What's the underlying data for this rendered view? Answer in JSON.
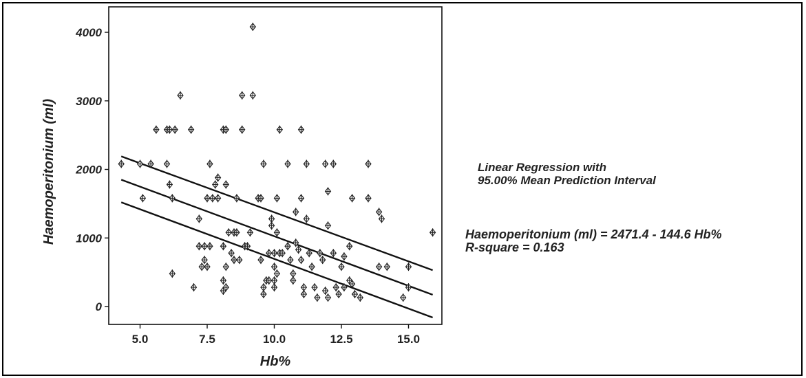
{
  "annotation": {
    "legend_line1": "Linear Regression with",
    "legend_line2": "95.00% Mean Prediction Interval",
    "equation": "Haemoperitonium (ml) = 2471.4 - 144.6 Hb%",
    "rsquare": "R-square = 0.163"
  },
  "chart_data": {
    "type": "scatter",
    "title": "",
    "xlabel": "Hb%",
    "ylabel": "Haemoperitonium (ml)",
    "xlim": [
      3.8,
      16.3
    ],
    "ylim": [
      -200,
      4150
    ],
    "xticks": [
      5.0,
      7.5,
      10.0,
      12.5,
      15.0
    ],
    "xtick_labels": [
      "5.0",
      "7.5",
      "10.0",
      "12.5",
      "15.0"
    ],
    "yticks": [
      0,
      1000,
      2000,
      3000,
      4000
    ],
    "ytick_labels": [
      "0",
      "1000",
      "2000",
      "3000",
      "4000"
    ],
    "grid": false,
    "marker": "diamond-cross",
    "regression": {
      "intercept": 2471.4,
      "slope": -144.6,
      "r_square": 0.163
    },
    "interval_lines": {
      "upper": [
        [
          4.3,
          2190
        ],
        [
          15.9,
          530
        ]
      ],
      "lower": [
        [
          4.3,
          1520
        ],
        [
          15.9,
          -160
        ]
      ]
    },
    "points": [
      [
        4.3,
        2080
      ],
      [
        5.0,
        2080
      ],
      [
        5.4,
        2080
      ],
      [
        5.1,
        1580
      ],
      [
        5.6,
        2580
      ],
      [
        6.0,
        2580
      ],
      [
        6.1,
        2580
      ],
      [
        6.3,
        2580
      ],
      [
        6.0,
        2080
      ],
      [
        6.1,
        1780
      ],
      [
        6.2,
        1580
      ],
      [
        6.5,
        3080
      ],
      [
        6.9,
        2580
      ],
      [
        6.2,
        480
      ],
      [
        7.0,
        280
      ],
      [
        7.2,
        880
      ],
      [
        7.4,
        880
      ],
      [
        7.6,
        880
      ],
      [
        7.2,
        1280
      ],
      [
        7.3,
        580
      ],
      [
        7.4,
        680
      ],
      [
        7.5,
        580
      ],
      [
        7.6,
        2080
      ],
      [
        7.5,
        1580
      ],
      [
        7.7,
        1580
      ],
      [
        7.8,
        1780
      ],
      [
        7.9,
        1880
      ],
      [
        7.9,
        1580
      ],
      [
        8.1,
        2580
      ],
      [
        8.2,
        2580
      ],
      [
        8.2,
        1780
      ],
      [
        8.1,
        880
      ],
      [
        8.2,
        580
      ],
      [
        8.1,
        380
      ],
      [
        8.1,
        230
      ],
      [
        8.2,
        280
      ],
      [
        8.3,
        1080
      ],
      [
        8.4,
        780
      ],
      [
        8.5,
        1080
      ],
      [
        8.5,
        680
      ],
      [
        8.6,
        1580
      ],
      [
        8.6,
        1080
      ],
      [
        8.7,
        680
      ],
      [
        8.8,
        2580
      ],
      [
        8.8,
        3080
      ],
      [
        8.9,
        880
      ],
      [
        9.0,
        880
      ],
      [
        9.1,
        1080
      ],
      [
        9.2,
        3080
      ],
      [
        9.2,
        4080
      ],
      [
        9.4,
        1580
      ],
      [
        9.5,
        1580
      ],
      [
        9.6,
        2080
      ],
      [
        9.5,
        680
      ],
      [
        9.7,
        380
      ],
      [
        9.6,
        280
      ],
      [
        9.6,
        180
      ],
      [
        9.8,
        780
      ],
      [
        9.8,
        380
      ],
      [
        9.9,
        1280
      ],
      [
        9.9,
        1180
      ],
      [
        10.0,
        780
      ],
      [
        10.0,
        580
      ],
      [
        10.1,
        480
      ],
      [
        10.0,
        380
      ],
      [
        10.0,
        280
      ],
      [
        10.1,
        1580
      ],
      [
        10.2,
        2580
      ],
      [
        10.2,
        780
      ],
      [
        10.1,
        1080
      ],
      [
        10.3,
        780
      ],
      [
        10.5,
        2080
      ],
      [
        10.5,
        880
      ],
      [
        10.6,
        680
      ],
      [
        10.7,
        480
      ],
      [
        10.7,
        380
      ],
      [
        10.8,
        1380
      ],
      [
        10.8,
        930
      ],
      [
        10.9,
        830
      ],
      [
        11.0,
        2580
      ],
      [
        11.0,
        1580
      ],
      [
        11.0,
        680
      ],
      [
        11.1,
        280
      ],
      [
        11.1,
        180
      ],
      [
        11.2,
        2080
      ],
      [
        11.2,
        1280
      ],
      [
        11.3,
        780
      ],
      [
        11.4,
        580
      ],
      [
        11.5,
        280
      ],
      [
        11.6,
        130
      ],
      [
        11.7,
        780
      ],
      [
        11.8,
        680
      ],
      [
        11.9,
        2080
      ],
      [
        11.9,
        230
      ],
      [
        12.0,
        1680
      ],
      [
        12.0,
        1180
      ],
      [
        12.0,
        130
      ],
      [
        12.2,
        2080
      ],
      [
        12.2,
        780
      ],
      [
        12.3,
        280
      ],
      [
        12.4,
        180
      ],
      [
        12.5,
        580
      ],
      [
        12.6,
        730
      ],
      [
        12.6,
        280
      ],
      [
        12.8,
        880
      ],
      [
        12.8,
        380
      ],
      [
        12.9,
        1580
      ],
      [
        12.9,
        330
      ],
      [
        13.0,
        180
      ],
      [
        13.2,
        130
      ],
      [
        13.5,
        2080
      ],
      [
        13.5,
        1580
      ],
      [
        13.9,
        1380
      ],
      [
        14.0,
        1280
      ],
      [
        13.9,
        580
      ],
      [
        14.2,
        580
      ],
      [
        14.8,
        130
      ],
      [
        15.0,
        580
      ],
      [
        15.0,
        280
      ],
      [
        15.9,
        1080
      ]
    ]
  }
}
